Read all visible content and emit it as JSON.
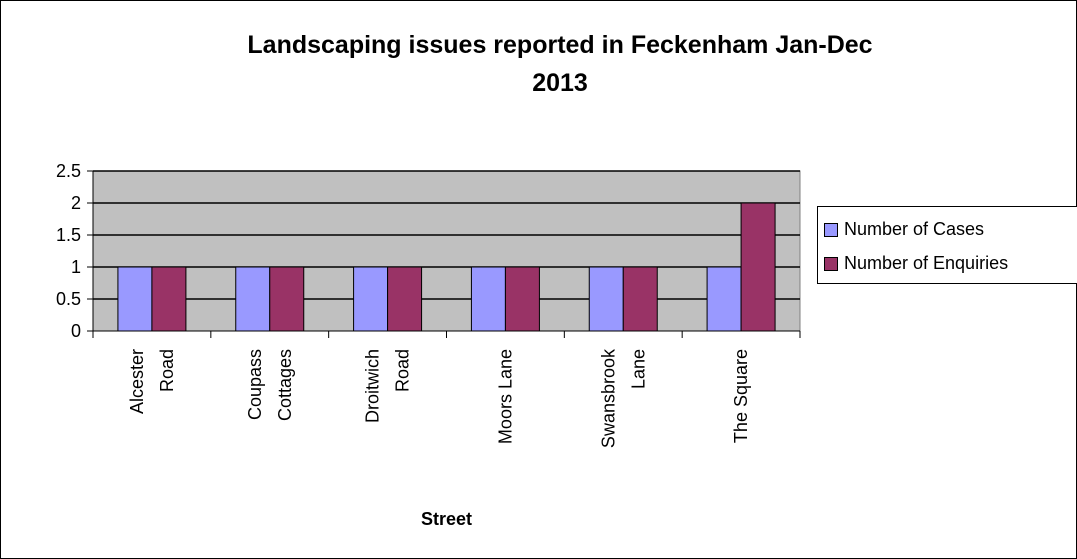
{
  "chart_data": {
    "type": "bar",
    "title_line1": "Landscaping issues reported in Feckenham Jan-Dec",
    "title_line2": "2013",
    "xlabel": "Street",
    "ylabel": "",
    "ylim": [
      0,
      2.5
    ],
    "yticks": [
      "0",
      "0.5",
      "1",
      "1.5",
      "2",
      "2.5"
    ],
    "categories": [
      [
        "Alcester",
        "Road"
      ],
      [
        "Coupass",
        "Cottages"
      ],
      [
        "Droitwich",
        "Road"
      ],
      [
        "Moors Lane"
      ],
      [
        "Swansbrook",
        "Lane"
      ],
      [
        "The Square"
      ]
    ],
    "series": [
      {
        "name": "Number of Cases",
        "color": "#9999ff",
        "values": [
          1,
          1,
          1,
          1,
          1,
          1
        ]
      },
      {
        "name": "Number of Enquiries",
        "color": "#993366",
        "values": [
          1,
          1,
          1,
          1,
          1,
          2
        ]
      }
    ],
    "plot_background": "#c0c0c0",
    "grid": true,
    "legend_position": "right"
  }
}
